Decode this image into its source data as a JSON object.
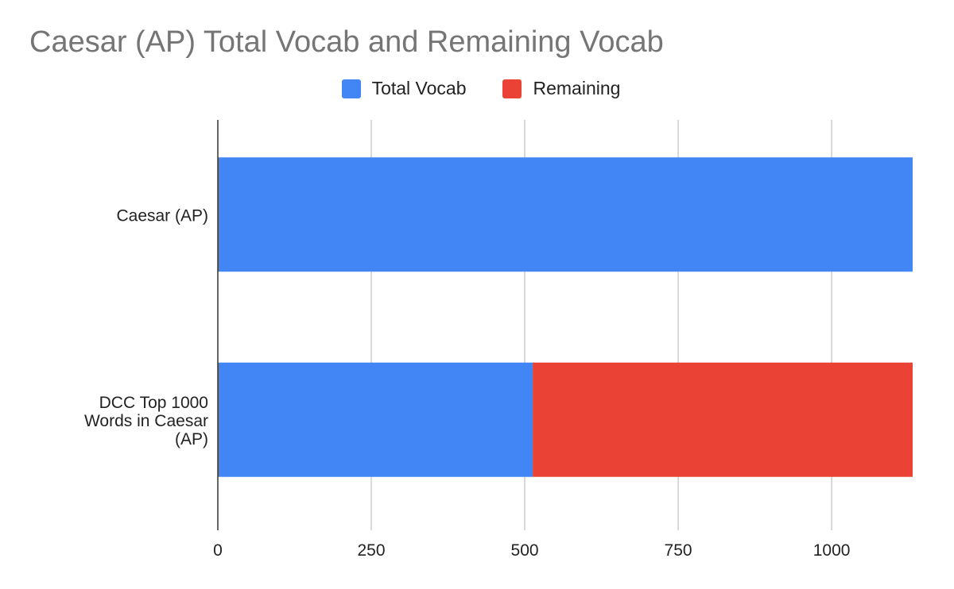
{
  "chart_data": {
    "type": "bar",
    "orientation": "horizontal",
    "stacked": true,
    "title": "Caesar (AP) Total Vocab and Remaining Vocab",
    "xlabel": "",
    "ylabel": "",
    "categories": [
      [
        "Caesar (AP)"
      ],
      [
        "DCC Top 1000",
        "Words in Caesar",
        "(AP)"
      ]
    ],
    "series": [
      {
        "name": "Total Vocab",
        "color": "#4285f4",
        "values": [
          1132,
          513
        ]
      },
      {
        "name": "Remaining",
        "color": "#ea4335",
        "values": [
          0,
          619
        ]
      }
    ],
    "xlim": [
      0,
      1132
    ],
    "xticks": [
      0,
      250,
      500,
      750,
      1000
    ],
    "grid": true,
    "legend_position": "top"
  }
}
